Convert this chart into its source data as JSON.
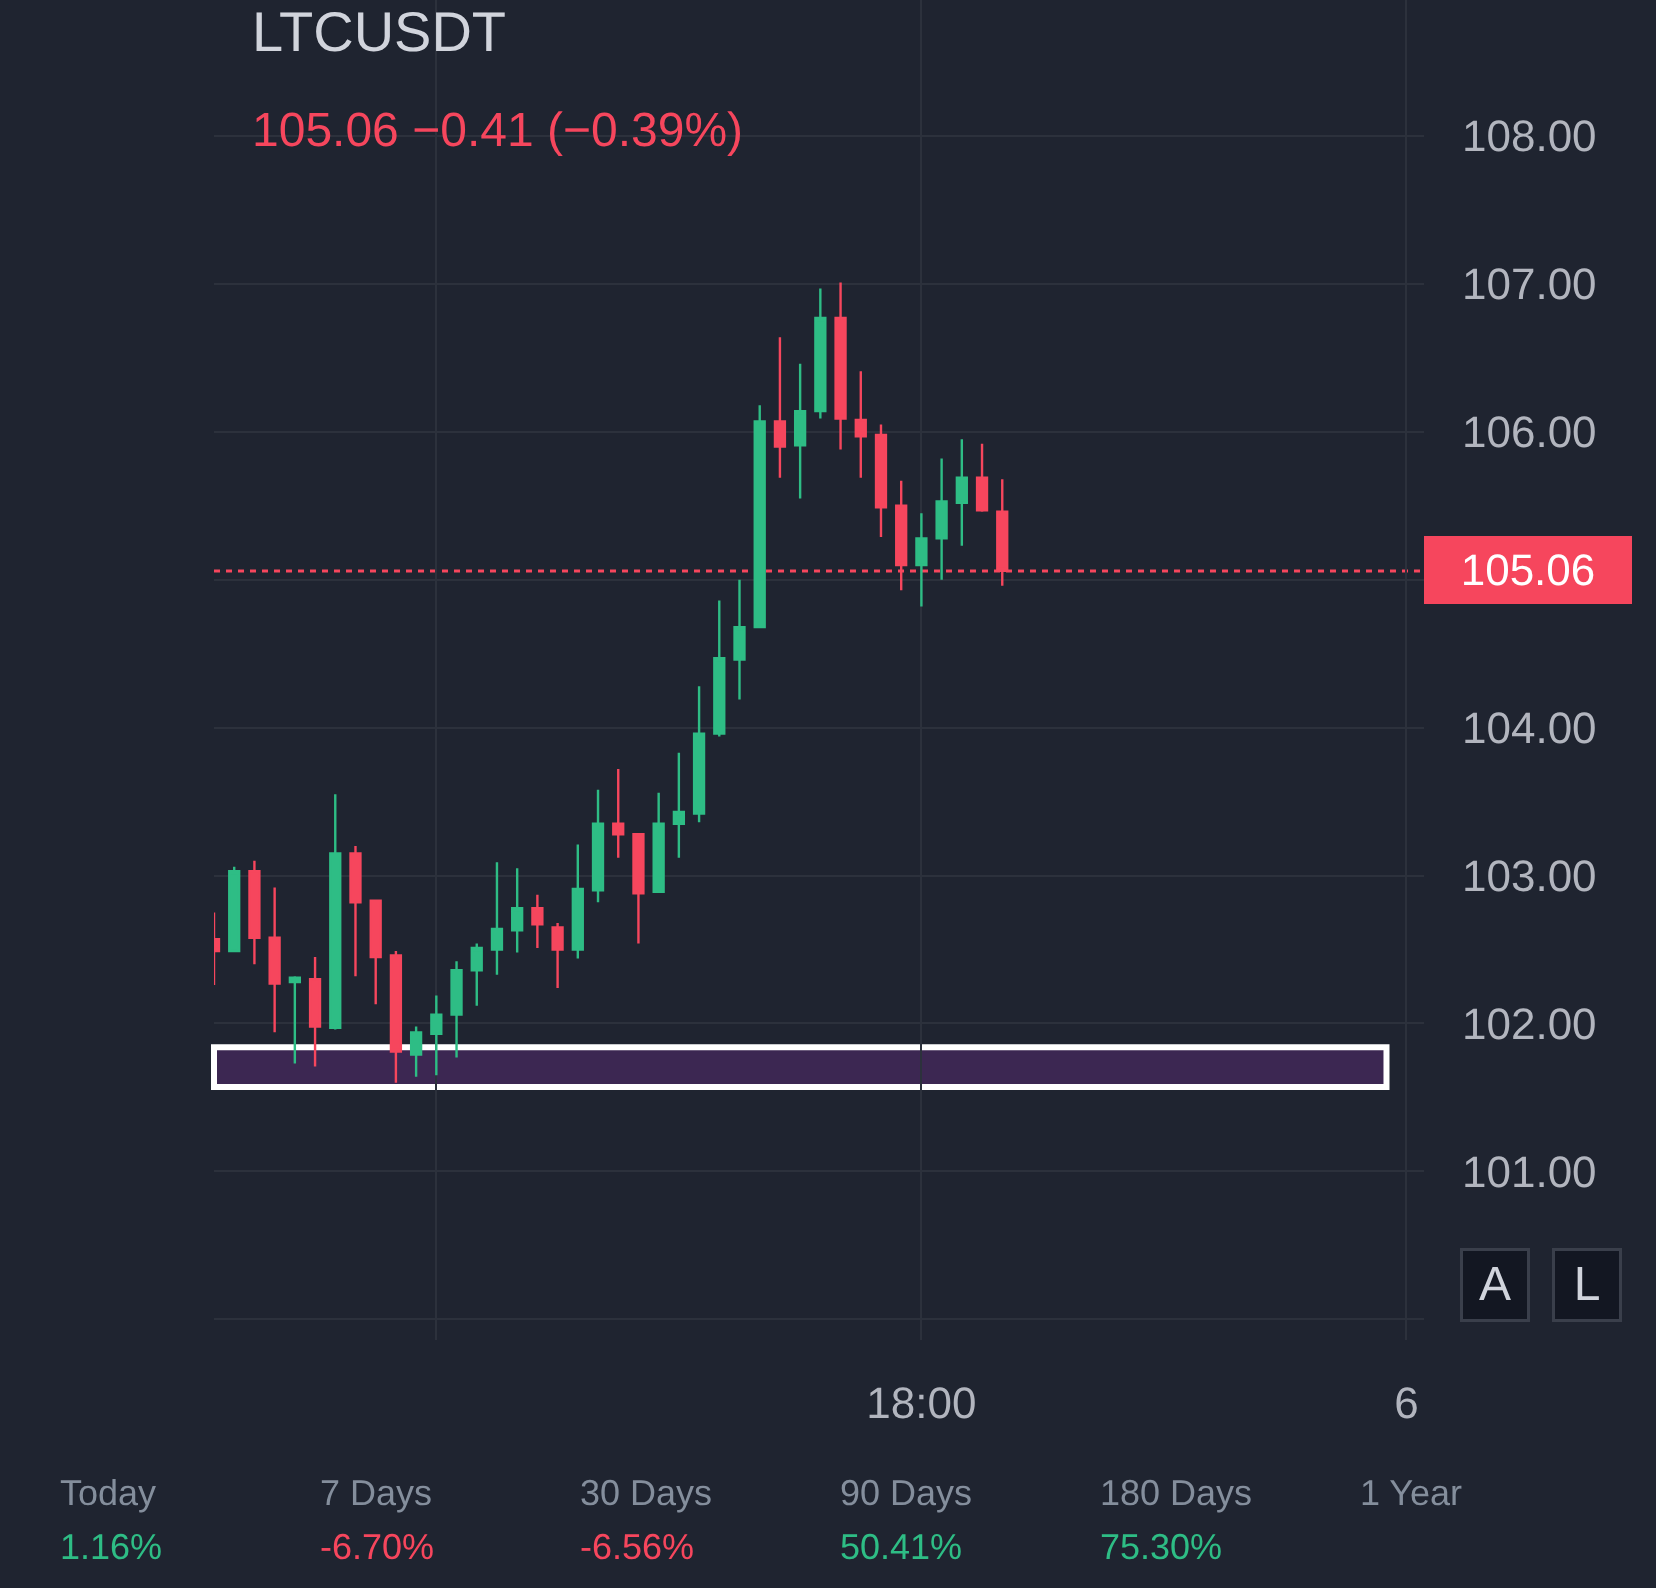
{
  "chart_data": [
    {
      "type": "candlestick",
      "title": "LTCUSDT",
      "subtitle": "105.06 −0.41 (−0.39%)",
      "x": [
        "--01-05T09:15",
        "--01-05T09:30",
        "--01-05T09:45",
        "--01-05T10:00",
        "--01-05T10:15",
        "--01-05T10:30",
        "--01-05T10:45",
        "--01-05T11:00",
        "--01-05T11:15",
        "--01-05T11:30",
        "--01-05T11:45",
        "--01-05T12:00",
        "--01-05T12:15",
        "--01-05T12:30",
        "--01-05T12:45",
        "--01-05T13:00",
        "--01-05T13:15",
        "--01-05T13:30",
        "--01-05T13:45",
        "--01-05T14:00",
        "--01-05T14:15",
        "--01-05T14:30",
        "--01-05T14:45",
        "--01-05T15:00",
        "--01-05T15:15",
        "--01-05T15:30",
        "--01-05T15:45",
        "--01-05T16:00",
        "--01-05T16:15",
        "--01-05T16:30",
        "--01-05T16:45",
        "--01-05T17:00",
        "--01-05T17:15",
        "--01-05T17:30",
        "--01-05T17:45",
        "--01-05T18:00",
        "--01-05T18:15",
        "--01-05T18:30",
        "--01-05T18:45",
        "--01-05T19:00"
      ],
      "ohlc": [
        [
          102.57,
          102.75,
          102.26,
          102.49
        ],
        [
          102.49,
          103.06,
          102.49,
          103.03
        ],
        [
          103.03,
          103.1,
          102.4,
          102.58
        ],
        [
          102.58,
          102.92,
          101.94,
          102.27
        ],
        [
          102.28,
          102.32,
          101.73,
          102.31
        ],
        [
          102.3,
          102.45,
          101.71,
          101.98
        ],
        [
          101.97,
          103.55,
          101.96,
          103.15
        ],
        [
          103.15,
          103.2,
          102.32,
          102.82
        ],
        [
          102.83,
          102.83,
          102.13,
          102.45
        ],
        [
          102.46,
          102.49,
          101.6,
          101.81
        ],
        [
          101.79,
          101.98,
          101.64,
          101.94
        ],
        [
          101.93,
          102.19,
          101.65,
          102.06
        ],
        [
          102.06,
          102.42,
          101.77,
          102.36
        ],
        [
          102.36,
          102.54,
          102.12,
          102.51
        ],
        [
          102.5,
          103.09,
          102.33,
          102.64
        ],
        [
          102.63,
          103.05,
          102.48,
          102.78
        ],
        [
          102.78,
          102.87,
          102.51,
          102.67
        ],
        [
          102.65,
          102.68,
          102.24,
          102.5
        ],
        [
          102.5,
          103.21,
          102.44,
          102.91
        ],
        [
          102.9,
          103.58,
          102.82,
          103.35
        ],
        [
          103.35,
          103.72,
          103.12,
          103.28
        ],
        [
          103.28,
          103.28,
          102.54,
          102.88
        ],
        [
          102.89,
          103.56,
          102.89,
          103.35
        ],
        [
          103.35,
          103.83,
          103.12,
          103.43
        ],
        [
          103.42,
          104.28,
          103.36,
          103.96
        ],
        [
          103.96,
          104.86,
          103.94,
          104.47
        ],
        [
          104.46,
          105.0,
          104.19,
          104.68
        ],
        [
          104.68,
          106.18,
          104.68,
          106.07
        ],
        [
          106.07,
          106.64,
          105.69,
          105.9
        ],
        [
          105.91,
          106.46,
          105.55,
          106.14
        ],
        [
          106.14,
          106.97,
          106.09,
          106.77
        ],
        [
          106.77,
          107.01,
          105.88,
          106.09
        ],
        [
          106.08,
          106.41,
          105.69,
          105.97
        ],
        [
          105.98,
          106.05,
          105.29,
          105.49
        ],
        [
          105.5,
          105.67,
          104.93,
          105.1
        ],
        [
          105.1,
          105.45,
          104.82,
          105.28
        ],
        [
          105.28,
          105.82,
          105.0,
          105.53
        ],
        [
          105.52,
          105.95,
          105.23,
          105.69
        ],
        [
          105.69,
          105.92,
          105.46,
          105.47
        ],
        [
          105.46,
          105.68,
          104.96,
          105.06
        ]
      ],
      "colors": [
        "#f6465d",
        "#2ebd85",
        "#f6465d",
        "#f6465d",
        "#2ebd85",
        "#f6465d",
        "#2ebd85",
        "#f6465d",
        "#f6465d",
        "#f6465d",
        "#2ebd85",
        "#2ebd85",
        "#2ebd85",
        "#2ebd85",
        "#2ebd85",
        "#2ebd85",
        "#f6465d",
        "#f6465d",
        "#2ebd85",
        "#2ebd85",
        "#f6465d",
        "#f6465d",
        "#2ebd85",
        "#2ebd85",
        "#2ebd85",
        "#2ebd85",
        "#2ebd85",
        "#2ebd85",
        "#f6465d",
        "#2ebd85",
        "#2ebd85",
        "#f6465d",
        "#f6465d",
        "#f6465d",
        "#f6465d",
        "#2ebd85",
        "#2ebd85",
        "#2ebd85",
        "#f6465d",
        "#f6465d"
      ],
      "xlim": [
        "--01-05T09:15",
        "--01-06T00:13"
      ],
      "xticks": [
        {
          "value": "--01-05T12:00",
          "label": null
        },
        {
          "value": "--01-05T18:00",
          "label": "18:00"
        },
        {
          "value": "--01-06",
          "label": "6"
        }
      ],
      "ylim": [
        99.86,
        108.92
      ],
      "yticks": [
        {
          "value": 100,
          "label": null
        },
        {
          "value": 101,
          "label": "101.00"
        },
        {
          "value": 102,
          "label": "102.00"
        },
        {
          "value": 103,
          "label": "103.00"
        },
        {
          "value": 104,
          "label": "104.00"
        },
        {
          "value": 105,
          "label": null
        },
        {
          "value": 106,
          "label": "106.00"
        },
        {
          "value": 107,
          "label": "107.00"
        },
        {
          "value": 108,
          "label": "108.00"
        }
      ],
      "grid": true,
      "ref_lines": [
        {
          "axis": "y",
          "value": 105.06,
          "label": "105.06",
          "color": "#f6465d",
          "line_style": "dotted"
        }
      ],
      "bands": [
        {
          "axis": "y",
          "from": 101.57,
          "to": 101.84,
          "color": "#3c2752"
        }
      ],
      "annotations": [
        "A",
        "L"
      ]
    },
    {
      "type": "other",
      "categories": [
        "Today",
        "7 Days",
        "30 Days",
        "90 Days",
        "180 Days",
        "1 Year"
      ],
      "value_labels": [
        "1.16%",
        "-6.70%",
        "-6.56%",
        "50.41%",
        "75.30%",
        null
      ],
      "colors": [
        "#2ebd85",
        "#f6465d",
        "#f6465d",
        "#2ebd85",
        "#2ebd85",
        null
      ]
    }
  ]
}
